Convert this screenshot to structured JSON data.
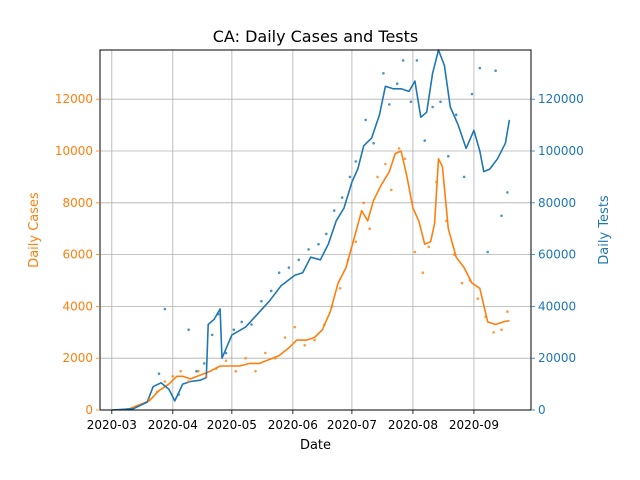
{
  "chart_data": {
    "type": "line",
    "title": "CA: Daily Cases and Tests",
    "xlabel": "Date",
    "ylabel_left": "Daily Cases",
    "ylabel_right": "Daily Tests",
    "x_domain": [
      "2020-02-24",
      "2020-09-30"
    ],
    "xticks": [
      "2020-03",
      "2020-04",
      "2020-05",
      "2020-06",
      "2020-07",
      "2020-08",
      "2020-09"
    ],
    "ylim_left": [
      0,
      13900
    ],
    "yticks_left": [
      "0",
      "2000",
      "4000",
      "6000",
      "8000",
      "10000",
      "12000"
    ],
    "ylim_right": [
      0,
      139000
    ],
    "yticks_right": [
      "0",
      "20000",
      "40000",
      "60000",
      "80000",
      "100000",
      "120000"
    ],
    "grid": true,
    "colors": {
      "cases": "#ff7f0e",
      "tests": "#1f77b4"
    },
    "series": [
      {
        "axis": "left",
        "color": "#ff7f0e",
        "style": "line",
        "points": [
          [
            "2020-03-05",
            0
          ],
          [
            "2020-03-10",
            50
          ],
          [
            "2020-03-15",
            200
          ],
          [
            "2020-03-20",
            350
          ],
          [
            "2020-03-25",
            750
          ],
          [
            "2020-03-30",
            1000
          ],
          [
            "2020-04-03",
            1300
          ],
          [
            "2020-04-06",
            1300
          ],
          [
            "2020-04-10",
            1200
          ],
          [
            "2020-04-15",
            1350
          ],
          [
            "2020-04-20",
            1500
          ],
          [
            "2020-04-25",
            1700
          ],
          [
            "2020-04-30",
            1700
          ],
          [
            "2020-05-05",
            1700
          ],
          [
            "2020-05-10",
            1800
          ],
          [
            "2020-05-15",
            1800
          ],
          [
            "2020-05-20",
            1950
          ],
          [
            "2020-05-25",
            2100
          ],
          [
            "2020-05-30",
            2400
          ],
          [
            "2020-06-03",
            2700
          ],
          [
            "2020-06-08",
            2700
          ],
          [
            "2020-06-12",
            2800
          ],
          [
            "2020-06-16",
            3100
          ],
          [
            "2020-06-20",
            3800
          ],
          [
            "2020-06-24",
            4900
          ],
          [
            "2020-06-28",
            5500
          ],
          [
            "2020-07-02",
            6600
          ],
          [
            "2020-07-06",
            7700
          ],
          [
            "2020-07-09",
            7300
          ],
          [
            "2020-07-12",
            8100
          ],
          [
            "2020-07-16",
            8700
          ],
          [
            "2020-07-20",
            9200
          ],
          [
            "2020-07-23",
            9900
          ],
          [
            "2020-07-26",
            10000
          ],
          [
            "2020-07-29",
            9000
          ],
          [
            "2020-08-01",
            7800
          ],
          [
            "2020-08-04",
            7300
          ],
          [
            "2020-08-07",
            6400
          ],
          [
            "2020-08-10",
            6500
          ],
          [
            "2020-08-12",
            7200
          ],
          [
            "2020-08-14",
            9700
          ],
          [
            "2020-08-16",
            9400
          ],
          [
            "2020-08-19",
            7000
          ],
          [
            "2020-08-23",
            5900
          ],
          [
            "2020-08-27",
            5500
          ],
          [
            "2020-08-31",
            4900
          ],
          [
            "2020-09-04",
            4700
          ],
          [
            "2020-09-08",
            3400
          ],
          [
            "2020-09-12",
            3300
          ],
          [
            "2020-09-16",
            3400
          ],
          [
            "2020-09-19",
            3450
          ]
        ]
      },
      {
        "axis": "right",
        "color": "#1f77b4",
        "style": "line",
        "points": [
          [
            "2020-03-01",
            0
          ],
          [
            "2020-03-12",
            500
          ],
          [
            "2020-03-19",
            3000
          ],
          [
            "2020-03-22",
            9000
          ],
          [
            "2020-03-26",
            10500
          ],
          [
            "2020-03-30",
            8000
          ],
          [
            "2020-04-02",
            3500
          ],
          [
            "2020-04-06",
            10000
          ],
          [
            "2020-04-10",
            11000
          ],
          [
            "2020-04-15",
            11500
          ],
          [
            "2020-04-18",
            12500
          ],
          [
            "2020-04-19",
            33000
          ],
          [
            "2020-04-22",
            35000
          ],
          [
            "2020-04-25",
            39000
          ],
          [
            "2020-04-26",
            20000
          ],
          [
            "2020-05-01",
            29000
          ],
          [
            "2020-05-08",
            32000
          ],
          [
            "2020-05-14",
            37000
          ],
          [
            "2020-05-20",
            42000
          ],
          [
            "2020-05-26",
            48000
          ],
          [
            "2020-06-02",
            52000
          ],
          [
            "2020-06-06",
            53000
          ],
          [
            "2020-06-10",
            59000
          ],
          [
            "2020-06-15",
            58000
          ],
          [
            "2020-06-19",
            64000
          ],
          [
            "2020-06-23",
            73000
          ],
          [
            "2020-06-27",
            78000
          ],
          [
            "2020-07-01",
            88000
          ],
          [
            "2020-07-04",
            93000
          ],
          [
            "2020-07-07",
            102000
          ],
          [
            "2020-07-11",
            105000
          ],
          [
            "2020-07-15",
            114000
          ],
          [
            "2020-07-18",
            125000
          ],
          [
            "2020-07-22",
            124000
          ],
          [
            "2020-07-26",
            124000
          ],
          [
            "2020-07-30",
            123000
          ],
          [
            "2020-08-02",
            127000
          ],
          [
            "2020-08-05",
            113000
          ],
          [
            "2020-08-08",
            115000
          ],
          [
            "2020-08-11",
            130000
          ],
          [
            "2020-08-14",
            139000
          ],
          [
            "2020-08-17",
            133000
          ],
          [
            "2020-08-20",
            117000
          ],
          [
            "2020-08-24",
            110000
          ],
          [
            "2020-08-28",
            101000
          ],
          [
            "2020-09-01",
            108000
          ],
          [
            "2020-09-04",
            100000
          ],
          [
            "2020-09-06",
            92000
          ],
          [
            "2020-09-09",
            93000
          ],
          [
            "2020-09-13",
            97000
          ],
          [
            "2020-09-17",
            103000
          ],
          [
            "2020-09-19",
            112000
          ]
        ]
      },
      {
        "axis": "left",
        "color": "#ff7f0e",
        "style": "scatter",
        "points": [
          [
            "2020-03-20",
            400
          ],
          [
            "2020-03-24",
            700
          ],
          [
            "2020-03-28",
            1100
          ],
          [
            "2020-04-01",
            1300
          ],
          [
            "2020-04-05",
            1500
          ],
          [
            "2020-04-09",
            1100
          ],
          [
            "2020-04-14",
            1500
          ],
          [
            "2020-04-18",
            1300
          ],
          [
            "2020-04-23",
            1600
          ],
          [
            "2020-04-28",
            1900
          ],
          [
            "2020-05-03",
            1500
          ],
          [
            "2020-05-08",
            2000
          ],
          [
            "2020-05-13",
            1500
          ],
          [
            "2020-05-18",
            2200
          ],
          [
            "2020-05-23",
            2000
          ],
          [
            "2020-05-28",
            2800
          ],
          [
            "2020-06-02",
            3200
          ],
          [
            "2020-06-07",
            2500
          ],
          [
            "2020-06-12",
            2700
          ],
          [
            "2020-06-17",
            3300
          ],
          [
            "2020-06-21",
            4000
          ],
          [
            "2020-06-25",
            4700
          ],
          [
            "2020-06-29",
            5800
          ],
          [
            "2020-07-03",
            6500
          ],
          [
            "2020-07-07",
            8000
          ],
          [
            "2020-07-10",
            7000
          ],
          [
            "2020-07-14",
            9000
          ],
          [
            "2020-07-18",
            9500
          ],
          [
            "2020-07-21",
            8500
          ],
          [
            "2020-07-25",
            10100
          ],
          [
            "2020-07-28",
            9700
          ],
          [
            "2020-08-02",
            6100
          ],
          [
            "2020-08-06",
            5300
          ],
          [
            "2020-08-09",
            6300
          ],
          [
            "2020-08-13",
            8800
          ],
          [
            "2020-08-18",
            7300
          ],
          [
            "2020-08-22",
            6000
          ],
          [
            "2020-08-26",
            4900
          ],
          [
            "2020-08-30",
            5000
          ],
          [
            "2020-09-03",
            4300
          ],
          [
            "2020-09-07",
            3600
          ],
          [
            "2020-09-11",
            3000
          ],
          [
            "2020-09-15",
            3100
          ],
          [
            "2020-09-18",
            3800
          ]
        ]
      },
      {
        "axis": "right",
        "color": "#1f77b4",
        "style": "scatter",
        "points": [
          [
            "2020-03-25",
            14000
          ],
          [
            "2020-03-28",
            39000
          ],
          [
            "2020-04-04",
            6000
          ],
          [
            "2020-04-09",
            31000
          ],
          [
            "2020-04-13",
            15000
          ],
          [
            "2020-04-17",
            18000
          ],
          [
            "2020-04-21",
            29000
          ],
          [
            "2020-04-24",
            37000
          ],
          [
            "2020-04-28",
            22000
          ],
          [
            "2020-05-02",
            31000
          ],
          [
            "2020-05-06",
            34000
          ],
          [
            "2020-05-11",
            33000
          ],
          [
            "2020-05-16",
            42000
          ],
          [
            "2020-05-21",
            46000
          ],
          [
            "2020-05-25",
            53000
          ],
          [
            "2020-05-30",
            55000
          ],
          [
            "2020-06-04",
            58000
          ],
          [
            "2020-06-09",
            62000
          ],
          [
            "2020-06-14",
            64000
          ],
          [
            "2020-06-18",
            68000
          ],
          [
            "2020-06-22",
            77000
          ],
          [
            "2020-06-26",
            82000
          ],
          [
            "2020-06-30",
            90000
          ],
          [
            "2020-07-03",
            96000
          ],
          [
            "2020-07-08",
            112000
          ],
          [
            "2020-07-12",
            103000
          ],
          [
            "2020-07-17",
            130000
          ],
          [
            "2020-07-20",
            118000
          ],
          [
            "2020-07-24",
            126000
          ],
          [
            "2020-07-27",
            135000
          ],
          [
            "2020-07-31",
            119000
          ],
          [
            "2020-08-03",
            135000
          ],
          [
            "2020-08-07",
            104000
          ],
          [
            "2020-08-11",
            117000
          ],
          [
            "2020-08-15",
            119000
          ],
          [
            "2020-08-19",
            98000
          ],
          [
            "2020-08-23",
            114000
          ],
          [
            "2020-08-27",
            90000
          ],
          [
            "2020-08-31",
            122000
          ],
          [
            "2020-09-04",
            132000
          ],
          [
            "2020-09-08",
            61000
          ],
          [
            "2020-09-12",
            131000
          ],
          [
            "2020-09-15",
            75000
          ],
          [
            "2020-09-18",
            84000
          ]
        ]
      }
    ]
  }
}
